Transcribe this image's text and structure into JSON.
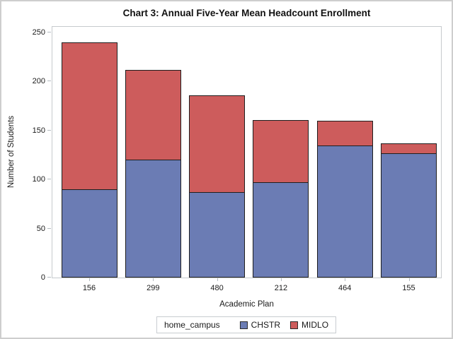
{
  "chart_data": {
    "type": "bar",
    "stacked": true,
    "title": "Chart 3: Annual Five-Year Mean Headcount Enrollment",
    "xlabel": "Academic Plan",
    "ylabel": "Number of Students",
    "categories": [
      "156",
      "299",
      "480",
      "212",
      "464",
      "155"
    ],
    "series": [
      {
        "name": "CHSTR",
        "color": "#6B7CB4",
        "values": [
          90,
          120,
          87,
          97,
          135,
          127
        ]
      },
      {
        "name": "MIDLO",
        "color": "#CD5C5C",
        "values": [
          150,
          92,
          99,
          64,
          25,
          10
        ]
      }
    ],
    "totals": [
      240,
      212,
      186,
      161,
      160,
      137
    ],
    "ylim": [
      0,
      250
    ],
    "yticks": [
      0,
      50,
      100,
      150,
      200,
      250
    ],
    "legend_title": "home_campus",
    "legend_position": "bottom",
    "grid": false
  },
  "colors": {
    "bar_outline": "#1e1e1e",
    "axis_frame": "#c6cacd",
    "chstr_blue": "#6B7CB4",
    "midlo_red": "#CD5C5C"
  }
}
